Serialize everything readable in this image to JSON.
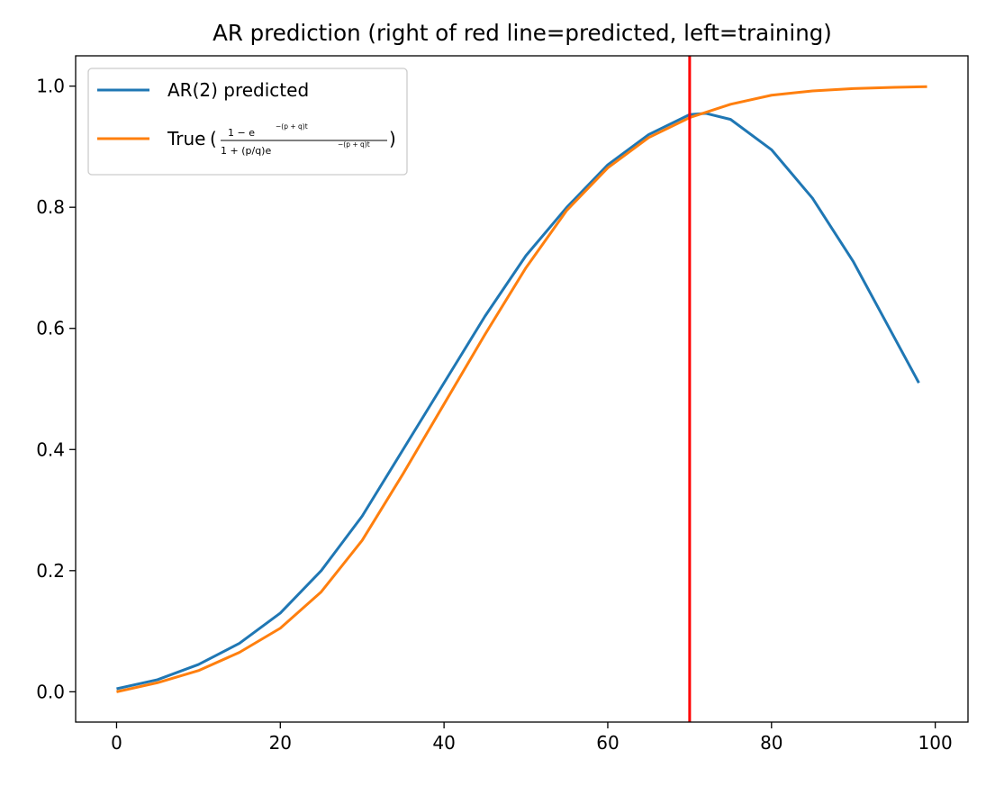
{
  "chart_data": {
    "type": "line",
    "title": "AR prediction (right of red line=predicted, left=training)",
    "xlabel": "",
    "ylabel": "",
    "xlim": [
      -5,
      104
    ],
    "ylim": [
      -0.05,
      1.05
    ],
    "x_ticks": [
      0,
      20,
      40,
      60,
      80,
      100
    ],
    "y_ticks": [
      0.0,
      0.2,
      0.4,
      0.6,
      0.8,
      1.0
    ],
    "x_tick_labels": [
      "0",
      "20",
      "40",
      "60",
      "80",
      "100"
    ],
    "y_tick_labels": [
      "0.0",
      "0.2",
      "0.4",
      "0.6",
      "0.8",
      "1.0"
    ],
    "grid": false,
    "legend_placement": "upper-left",
    "vline": {
      "x": 70,
      "color": "#ff0000"
    },
    "series": [
      {
        "name": "AR(2) predicted",
        "color": "#1f77b4",
        "x": [
          0,
          5,
          10,
          15,
          20,
          25,
          30,
          35,
          40,
          45,
          50,
          55,
          60,
          65,
          70,
          72,
          75,
          80,
          85,
          90,
          95,
          98
        ],
        "y": [
          0.005,
          0.02,
          0.045,
          0.08,
          0.13,
          0.2,
          0.29,
          0.4,
          0.51,
          0.62,
          0.72,
          0.8,
          0.87,
          0.92,
          0.953,
          0.955,
          0.945,
          0.895,
          0.815,
          0.71,
          0.585,
          0.51
        ]
      },
      {
        "name": "True",
        "name_formula_numerator": "1 − e",
        "name_formula_numerator_exp": "−(p + q)t",
        "name_formula_denominator": "1 + (p/q)e",
        "name_formula_denominator_exp": "−(p + q)t",
        "color": "#ff7f0e",
        "x": [
          0,
          5,
          10,
          15,
          20,
          25,
          30,
          35,
          40,
          45,
          50,
          55,
          60,
          65,
          70,
          75,
          80,
          85,
          90,
          95,
          99
        ],
        "y": [
          0.0,
          0.015,
          0.035,
          0.065,
          0.105,
          0.165,
          0.25,
          0.36,
          0.475,
          0.59,
          0.7,
          0.795,
          0.865,
          0.915,
          0.948,
          0.97,
          0.985,
          0.992,
          0.996,
          0.998,
          0.999
        ]
      }
    ]
  }
}
